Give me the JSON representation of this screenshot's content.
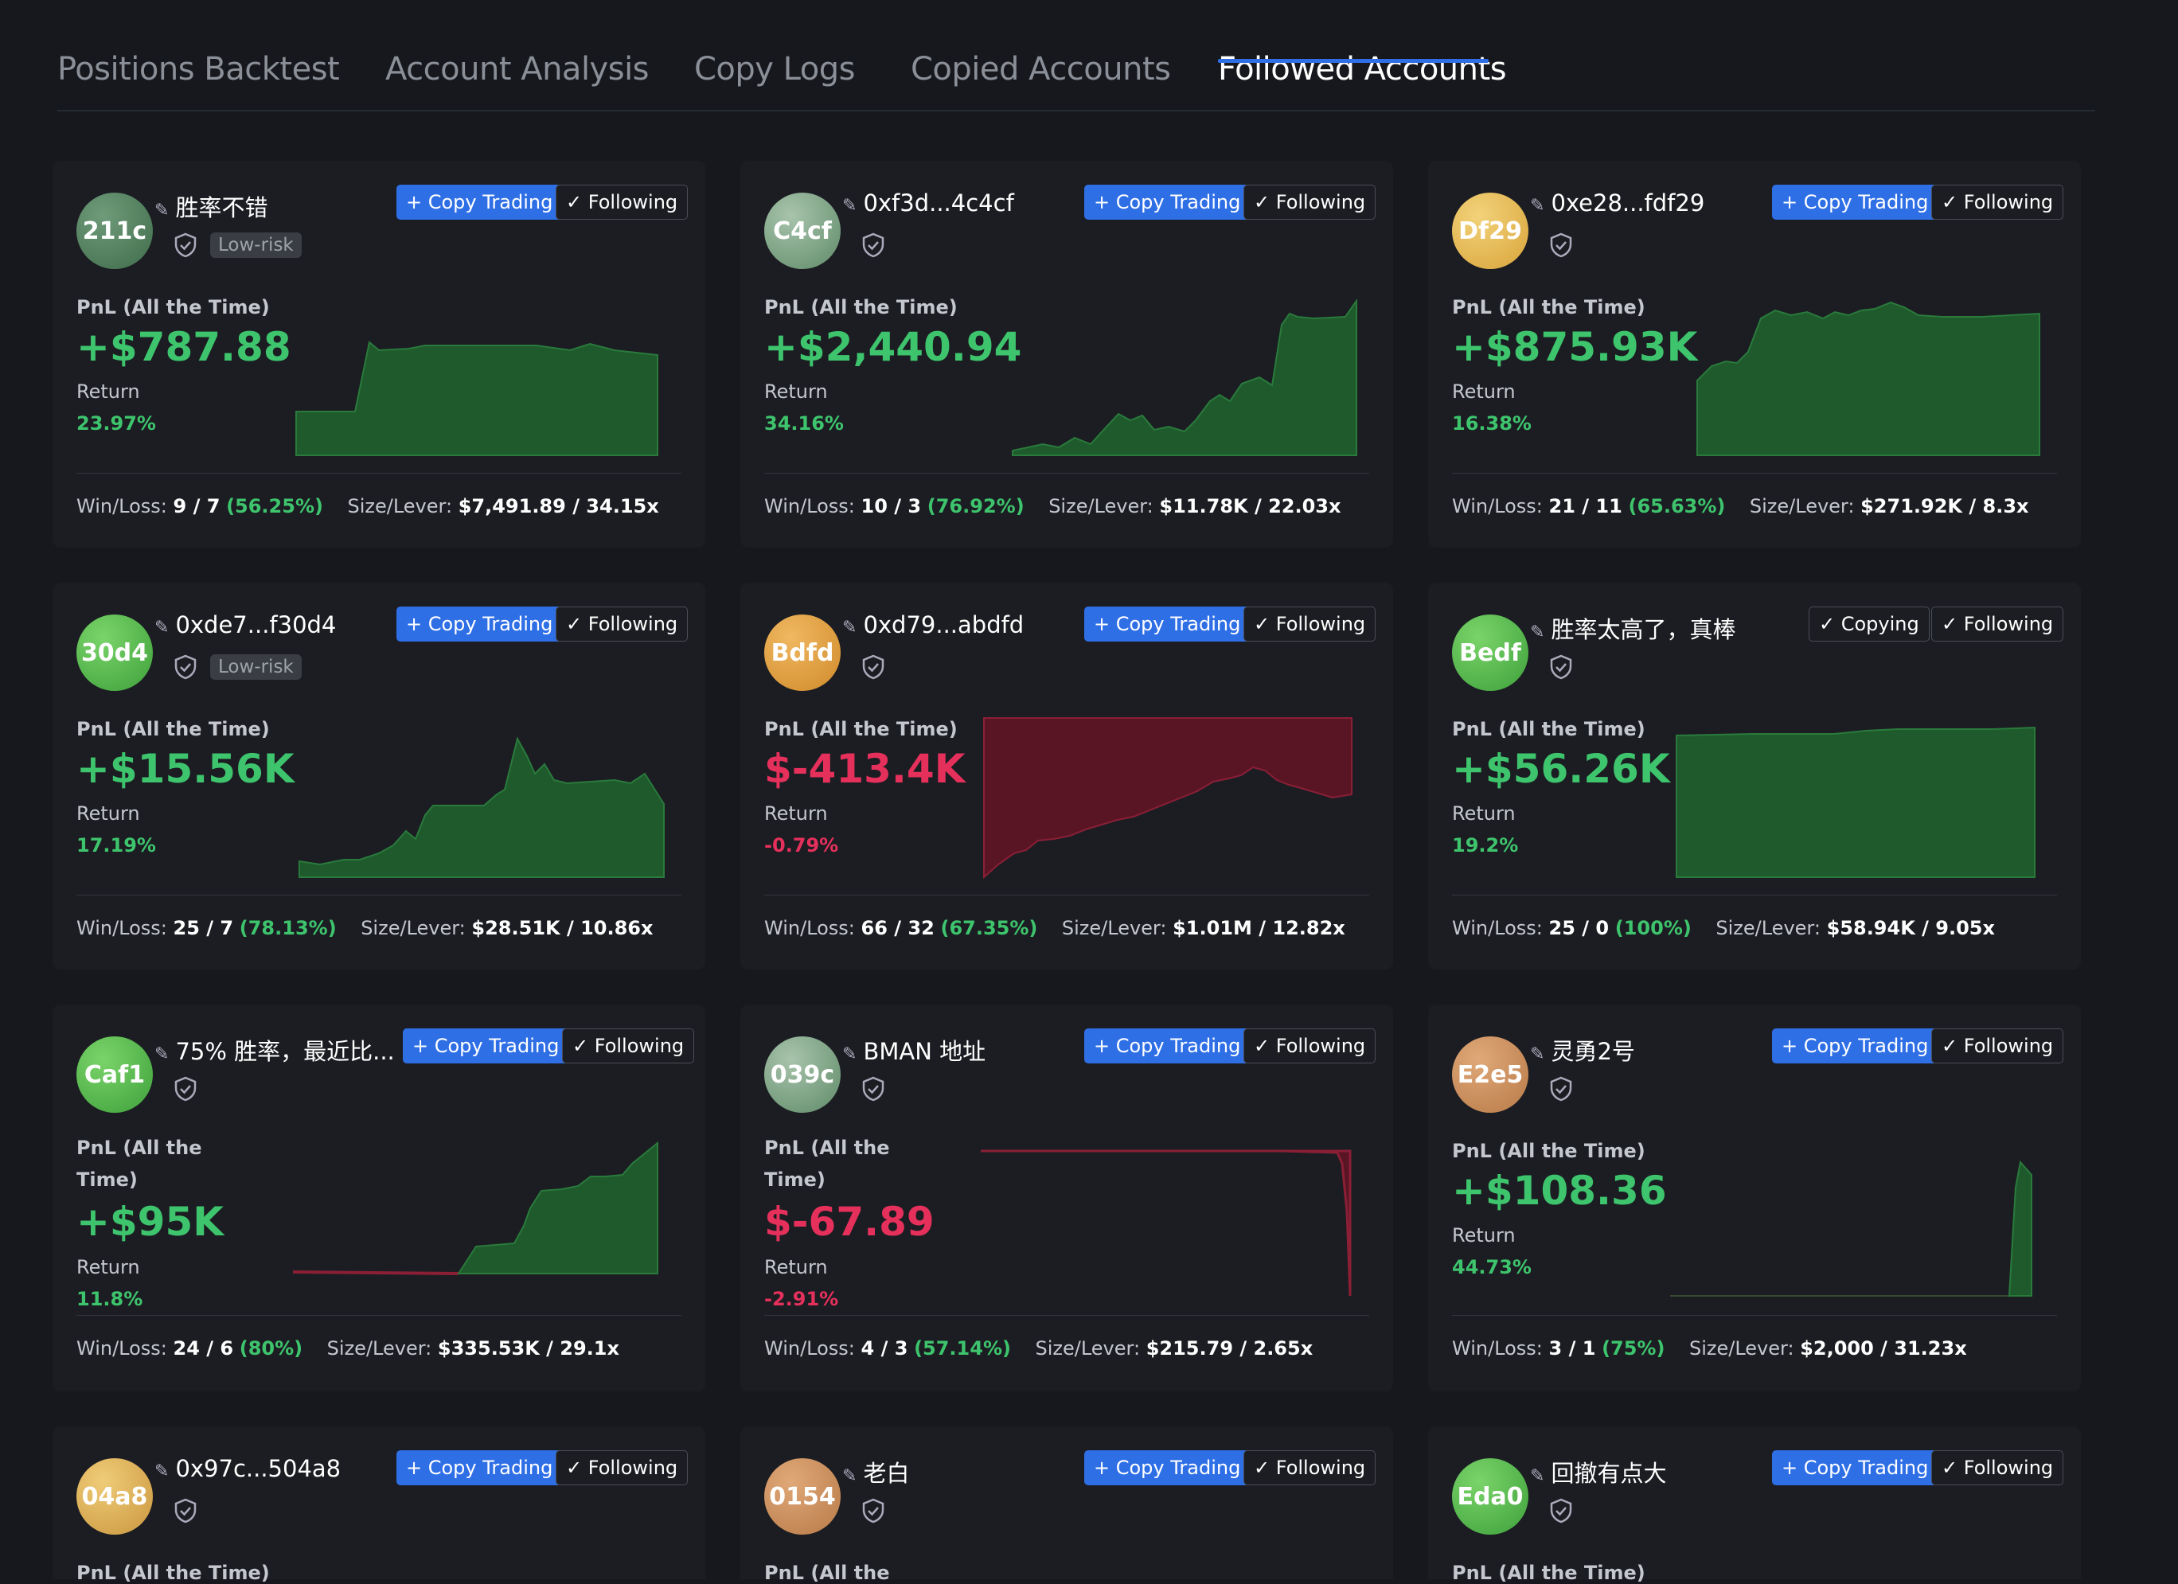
{
  "tabs": [
    "Positions Backtest",
    "Account Analysis",
    "Copy Logs",
    "Copied Accounts",
    "Followed Accounts"
  ],
  "active_tab": "Followed Accounts",
  "labels": {
    "pnl": "PnL (All the Time)",
    "return": "Return",
    "winloss": "Win/Loss:",
    "sizelever": "Size/Lever:",
    "copy_trading": "+ Copy Trading",
    "following": "✓ Following",
    "copying": "✓ Copying",
    "low_risk": "Low-risk"
  },
  "accounts": [
    {
      "avatar": "211c",
      "name": "胜率不错",
      "risk": "Low-risk",
      "pnl": "+$787.88",
      "ret": "23.97%",
      "wl": "9 / 7",
      "wr": "(56.25%)",
      "sl": "$7,491.89 / 34.15x",
      "copy": "+ Copy Trading",
      "follow": "✓ Following"
    },
    {
      "avatar": "C4cf",
      "name": "0xf3d...4c4cf",
      "pnl": "+$2,440.94",
      "ret": "34.16%",
      "wl": "10 / 3",
      "wr": "(76.92%)",
      "sl": "$11.78K / 22.03x",
      "copy": "+ Copy Trading",
      "follow": "✓ Following"
    },
    {
      "avatar": "Df29",
      "name": "0xe28...fdf29",
      "pnl": "+$875.93K",
      "ret": "16.38%",
      "wl": "21 / 11",
      "wr": "(65.63%)",
      "sl": "$271.92K / 8.3x",
      "copy": "+ Copy Trading",
      "follow": "✓ Following"
    },
    {
      "avatar": "30d4",
      "name": "0xde7...f30d4",
      "risk": "Low-risk",
      "pnl": "+$15.56K",
      "ret": "17.19%",
      "wl": "25 / 7",
      "wr": "(78.13%)",
      "sl": "$28.51K / 10.86x",
      "copy": "+ Copy Trading",
      "follow": "✓ Following"
    },
    {
      "avatar": "Bdfd",
      "name": "0xd79...abdfd",
      "pnl": "$-413.4K",
      "ret": "-0.79%",
      "wl": "66 / 32",
      "wr": "(67.35%)",
      "sl": "$1.01M / 12.82x",
      "copy": "+ Copy Trading",
      "follow": "✓ Following"
    },
    {
      "avatar": "Bedf",
      "name": "胜率太高了，真棒",
      "pnl": "+$56.26K",
      "ret": "19.2%",
      "wl": "25 / 0",
      "wr": "(100%)",
      "sl": "$58.94K / 9.05x",
      "copy": "✓ Copying",
      "follow": "✓ Following"
    },
    {
      "avatar": "Caf1",
      "name": "75% 胜率，最近比...",
      "pnl_label1": "PnL (All the",
      "pnl_label2": "Time)",
      "pnl": "+$95K",
      "ret": "11.8%",
      "wl": "24 / 6",
      "wr": "(80%)",
      "sl": "$335.53K / 29.1x",
      "copy": "+ Copy Trading",
      "follow": "✓ Following"
    },
    {
      "avatar": "039c",
      "name": "BMAN 地址",
      "pnl_label1": "PnL (All the",
      "pnl_label2": "Time)",
      "pnl": "$-67.89",
      "ret": "-2.91%",
      "wl": "4 / 3",
      "wr": "(57.14%)",
      "sl": "$215.79 / 2.65x",
      "copy": "+ Copy Trading",
      "follow": "✓ Following"
    },
    {
      "avatar": "E2e5",
      "name": "灵勇2号",
      "pnl": "+$108.36",
      "ret": "44.73%",
      "wl": "3 / 1",
      "wr": "(75%)",
      "sl": "$2,000 / 31.23x",
      "copy": "+ Copy Trading",
      "follow": "✓ Following"
    },
    {
      "avatar": "04a8",
      "name": "0x97c...504a8",
      "pnl_label_partial": "PnL (All the Time)",
      "copy": "+ Copy Trading",
      "follow": "✓ Following"
    },
    {
      "avatar": "0154",
      "name": "老白",
      "pnl_label_partial": "PnL (All the",
      "copy": "+ Copy Trading",
      "follow": "✓ Following"
    },
    {
      "avatar": "Eda0",
      "name": "回撤有点大",
      "pnl_label_partial": "PnL (All the Time)",
      "copy": "+ Copy Trading",
      "follow": "✓ Following"
    }
  ],
  "colors": {
    "positive": "#3ec46d",
    "negative": "#e5305c",
    "accent": "#2f6fe6",
    "chart_pos_fill": "#1f5a2c",
    "chart_neg_fill": "#5a1524"
  }
}
